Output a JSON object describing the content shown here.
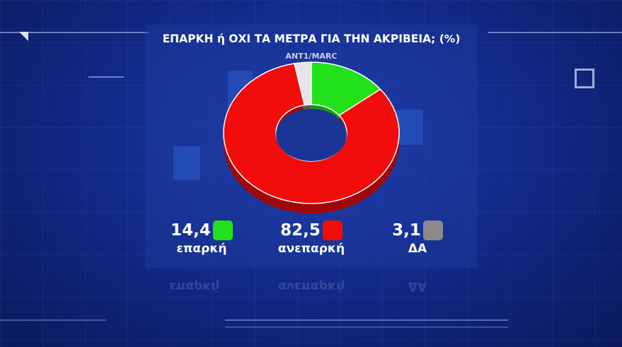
{
  "header": {
    "title": "ΕΠΑΡΚΗ ή ΟΧΙ ΤΑ ΜΕΤΡΑ ΓΙΑ ΤΗΝ ΑΚΡΙΒΕΙΑ; (%)",
    "source": "ANT1/MARC"
  },
  "chart_data": {
    "type": "pie",
    "donut": true,
    "title": "ΕΠΑΡΚΗ ή ΟΧΙ ΤΑ ΜΕΤΡΑ ΓΙΑ ΤΗΝ ΑΚΡΙΒΕΙΑ; (%)",
    "categories": [
      "επαρκή",
      "ανεπαρκή",
      "ΔΑ"
    ],
    "values": [
      14.4,
      82.5,
      3.1
    ],
    "value_labels": [
      "14,4",
      "82,5",
      "3,1"
    ],
    "colors": [
      "#22e01a",
      "#f20c0c",
      "#8a8a8a"
    ],
    "legend": "bottom"
  }
}
